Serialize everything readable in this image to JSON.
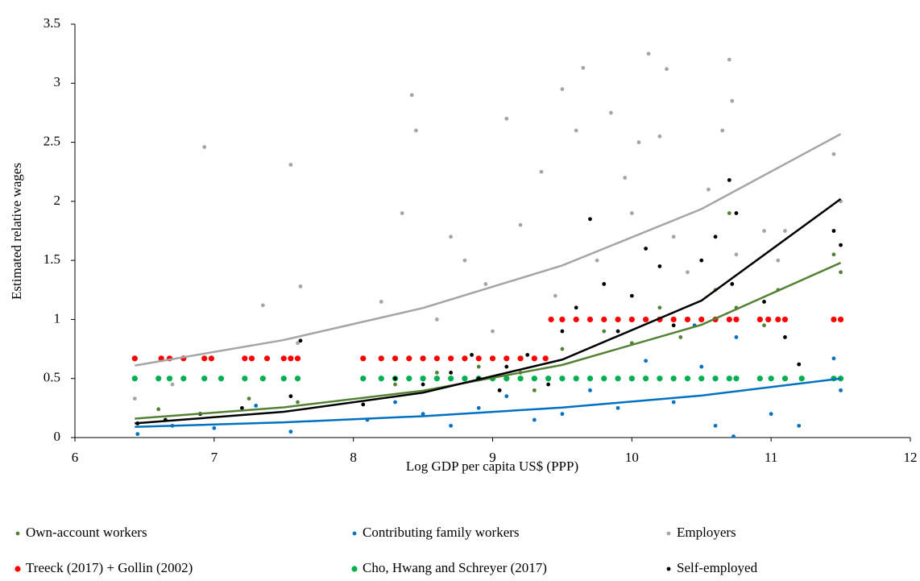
{
  "chart_data": {
    "type": "scatter",
    "x_label": "Log GDP per capita US$ (PPP)",
    "y_label": "Estimated relative wages",
    "xlim": [
      6,
      12
    ],
    "xticks": [
      6,
      7,
      8,
      9,
      10,
      11,
      12
    ],
    "ylim": [
      0,
      3.5
    ],
    "yticks": [
      0,
      0.5,
      1,
      1.5,
      2,
      2.5,
      3,
      3.5
    ],
    "series": [
      {
        "name": "Employers",
        "color": "#a5a5a5",
        "x": [
          6.43,
          6.7,
          6.93,
          7.35,
          7.55,
          7.62,
          7.6,
          8.2,
          8.35,
          8.42,
          8.45,
          8.6,
          8.8,
          8.95,
          9.1,
          9.2,
          9.35,
          9.5,
          9.6,
          9.65,
          9.75,
          9.85,
          9.95,
          10.0,
          10.05,
          10.12,
          10.2,
          10.25,
          10.3,
          10.4,
          10.55,
          10.65,
          10.7,
          10.72,
          10.75,
          10.95,
          11.05,
          11.1,
          11.45,
          11.5,
          9.0,
          8.7,
          9.45
        ],
        "y": [
          0.33,
          0.45,
          2.46,
          1.12,
          2.31,
          1.28,
          0.8,
          1.15,
          1.9,
          2.9,
          2.6,
          1.0,
          1.5,
          1.3,
          2.7,
          1.8,
          2.25,
          2.95,
          2.6,
          3.13,
          1.5,
          2.75,
          2.2,
          1.9,
          2.5,
          3.25,
          2.55,
          3.12,
          1.7,
          1.4,
          2.1,
          2.6,
          3.2,
          2.85,
          1.55,
          1.75,
          1.5,
          1.75,
          2.4,
          2.0,
          0.9,
          1.7,
          1.2
        ],
        "trend": {
          "x": [
            6.43,
            7.5,
            8.5,
            9.5,
            10.5,
            11.5
          ],
          "y": [
            0.61,
            0.826,
            1.097,
            1.457,
            1.935,
            2.57
          ]
        }
      },
      {
        "name": "Own-account workers",
        "color": "#548235",
        "x": [
          6.45,
          6.6,
          7.25,
          7.6,
          8.3,
          8.6,
          8.9,
          9.2,
          9.5,
          9.8,
          10.0,
          10.2,
          10.35,
          10.6,
          10.7,
          10.75,
          10.95,
          11.05,
          11.45,
          11.5,
          9.3
        ],
        "y": [
          0.12,
          0.24,
          0.33,
          0.3,
          0.45,
          0.55,
          0.6,
          0.55,
          0.75,
          0.9,
          0.8,
          1.1,
          0.85,
          1.25,
          1.9,
          1.1,
          0.95,
          1.25,
          1.55,
          1.4,
          0.4
        ],
        "trend": {
          "x": [
            6.43,
            7.5,
            8.5,
            9.5,
            10.5,
            11.5
          ],
          "y": [
            0.16,
            0.256,
            0.397,
            0.615,
            0.955,
            1.48
          ]
        }
      },
      {
        "name": "Contributing family workers",
        "color": "#0070c0",
        "x": [
          6.45,
          6.7,
          7.0,
          7.3,
          7.55,
          8.1,
          8.3,
          8.5,
          8.7,
          8.9,
          9.1,
          9.3,
          9.5,
          9.7,
          9.9,
          10.0,
          10.1,
          10.3,
          10.5,
          10.6,
          10.73,
          10.75,
          11.0,
          11.2,
          11.45,
          11.5,
          10.45
        ],
        "y": [
          0.03,
          0.1,
          0.08,
          0.27,
          0.05,
          0.15,
          0.3,
          0.2,
          0.1,
          0.25,
          0.35,
          0.15,
          0.2,
          0.4,
          0.25,
          0.5,
          0.65,
          0.3,
          0.6,
          0.1,
          0.01,
          0.85,
          0.2,
          0.1,
          0.67,
          0.4,
          0.95
        ],
        "trend": {
          "x": [
            6.43,
            7.5,
            8.5,
            9.5,
            10.5,
            11.5
          ],
          "y": [
            0.09,
            0.129,
            0.181,
            0.254,
            0.356,
            0.5
          ]
        }
      },
      {
        "name": "Treeck (2017) + Gollin (2002)",
        "color": "#ff0000",
        "x": [
          6.43,
          6.62,
          6.68,
          6.78,
          6.93,
          6.98,
          7.22,
          7.27,
          7.38,
          7.5,
          7.55,
          7.6,
          8.07,
          8.2,
          8.3,
          8.4,
          8.5,
          8.6,
          8.7,
          8.8,
          8.9,
          9.0,
          9.1,
          9.2,
          9.3,
          9.38,
          9.42,
          9.5,
          9.6,
          9.7,
          9.8,
          9.9,
          10.0,
          10.1,
          10.2,
          10.3,
          10.4,
          10.5,
          10.6,
          10.7,
          10.75,
          10.92,
          10.98,
          11.05,
          11.1,
          11.45,
          11.5
        ],
        "y": [
          0.67,
          0.67,
          0.67,
          0.67,
          0.67,
          0.67,
          0.67,
          0.67,
          0.67,
          0.67,
          0.67,
          0.67,
          0.67,
          0.67,
          0.67,
          0.67,
          0.67,
          0.67,
          0.67,
          0.67,
          0.67,
          0.67,
          0.67,
          0.67,
          0.67,
          0.67,
          1,
          1,
          1,
          1,
          1,
          1,
          1,
          1,
          1,
          1,
          1,
          1,
          1,
          1,
          1,
          1,
          1,
          1,
          1,
          1,
          1
        ]
      },
      {
        "name": "Cho, Hwang and Schreyer (2017)",
        "color": "#00b050",
        "x": [
          6.43,
          6.6,
          6.68,
          6.78,
          6.93,
          7.05,
          7.22,
          7.35,
          7.5,
          7.6,
          8.07,
          8.2,
          8.3,
          8.4,
          8.5,
          8.6,
          8.7,
          8.8,
          8.9,
          9.0,
          9.1,
          9.2,
          9.3,
          9.4,
          9.5,
          9.6,
          9.7,
          9.8,
          9.9,
          10.0,
          10.1,
          10.2,
          10.3,
          10.4,
          10.5,
          10.6,
          10.7,
          10.75,
          10.92,
          11.0,
          11.1,
          11.22,
          11.45,
          11.5
        ],
        "y": [
          0.5,
          0.5,
          0.5,
          0.5,
          0.5,
          0.5,
          0.5,
          0.5,
          0.5,
          0.5,
          0.5,
          0.5,
          0.5,
          0.5,
          0.5,
          0.5,
          0.5,
          0.5,
          0.5,
          0.5,
          0.5,
          0.5,
          0.5,
          0.5,
          0.5,
          0.5,
          0.5,
          0.5,
          0.5,
          0.5,
          0.5,
          0.5,
          0.5,
          0.5,
          0.5,
          0.5,
          0.5,
          0.5,
          0.5,
          0.5,
          0.5,
          0.5,
          0.5,
          0.5
        ]
      },
      {
        "name": "Self-employed",
        "color": "#000000",
        "x": [
          6.45,
          6.65,
          6.9,
          7.2,
          7.55,
          7.62,
          8.07,
          8.3,
          8.5,
          8.7,
          8.9,
          9.1,
          9.25,
          9.4,
          9.5,
          9.6,
          9.7,
          9.8,
          9.9,
          10.0,
          10.1,
          10.2,
          10.3,
          10.5,
          10.6,
          10.7,
          10.72,
          10.75,
          10.95,
          11.1,
          11.2,
          11.45,
          11.5,
          9.05,
          8.85
        ],
        "y": [
          0.12,
          0.15,
          0.2,
          0.25,
          0.35,
          0.82,
          0.28,
          0.5,
          0.45,
          0.55,
          0.5,
          0.6,
          0.7,
          0.45,
          0.9,
          1.1,
          1.85,
          1.3,
          0.9,
          1.2,
          1.6,
          1.45,
          0.95,
          1.5,
          1.7,
          2.18,
          1.3,
          1.9,
          1.15,
          0.85,
          0.62,
          1.75,
          1.63,
          0.4,
          0.7
        ],
        "trend": {
          "x": [
            6.43,
            7.5,
            8.5,
            9.5,
            10.5,
            11.5
          ],
          "y": [
            0.12,
            0.218,
            0.38,
            0.66,
            1.16,
            2.02
          ]
        }
      }
    ],
    "legend_order": [
      1,
      2,
      0,
      3,
      4,
      5
    ]
  }
}
